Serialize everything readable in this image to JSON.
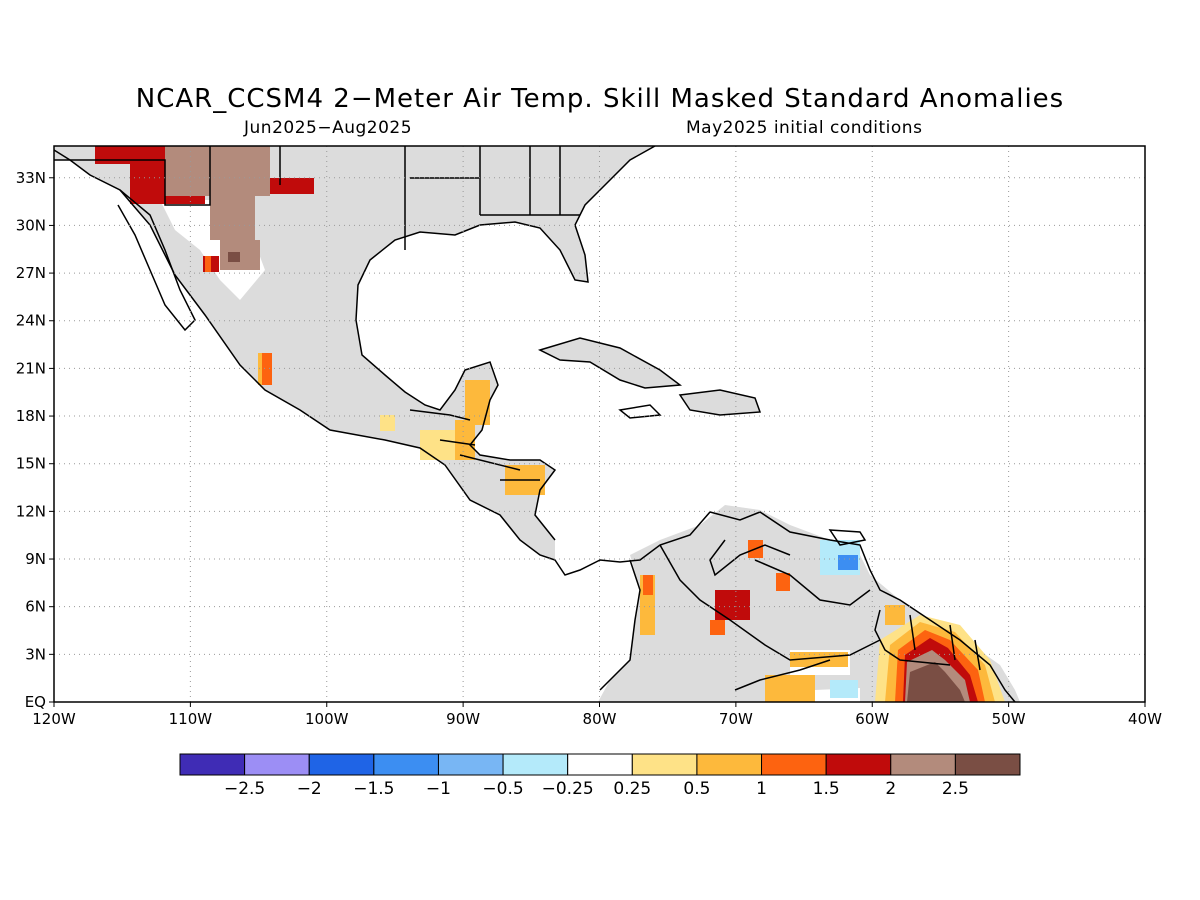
{
  "title": "NCAR_CCSM4 2−Meter Air Temp. Skill Masked Standard Anomalies",
  "subtitle_left": "Jun2025−Aug2025",
  "subtitle_right": "May2025 initial conditions",
  "map": {
    "lon_range": [
      -120,
      -40
    ],
    "lat_range": [
      0,
      35
    ],
    "lat_ticks": [
      "33N",
      "30N",
      "27N",
      "24N",
      "21N",
      "18N",
      "15N",
      "12N",
      "9N",
      "6N",
      "3N",
      "EQ"
    ],
    "lat_values": [
      33,
      30,
      27,
      24,
      21,
      18,
      15,
      12,
      9,
      6,
      3,
      0
    ],
    "lon_ticks": [
      "120W",
      "110W",
      "100W",
      "90W",
      "80W",
      "70W",
      "60W",
      "50W",
      "40W"
    ],
    "lon_values": [
      -120,
      -110,
      -100,
      -90,
      -80,
      -70,
      -60,
      -50,
      -40
    ],
    "grid": true,
    "masked_color": "#dcdcdc"
  },
  "colorbar": {
    "colors": [
      "#3f2cb5",
      "#9c8ef5",
      "#1f64e6",
      "#3c8ef2",
      "#78b6f4",
      "#b4eafa",
      "#ffffff",
      "#fee287",
      "#fdb93c",
      "#fd6310",
      "#c00b0b",
      "#b38b7c",
      "#7a4e44"
    ],
    "labels": [
      "−2.5",
      "−2",
      "−1.5",
      "−1",
      "−0.5",
      "−0.25",
      "0.25",
      "0.5",
      "1",
      "1.5",
      "2",
      "2.5"
    ]
  }
}
